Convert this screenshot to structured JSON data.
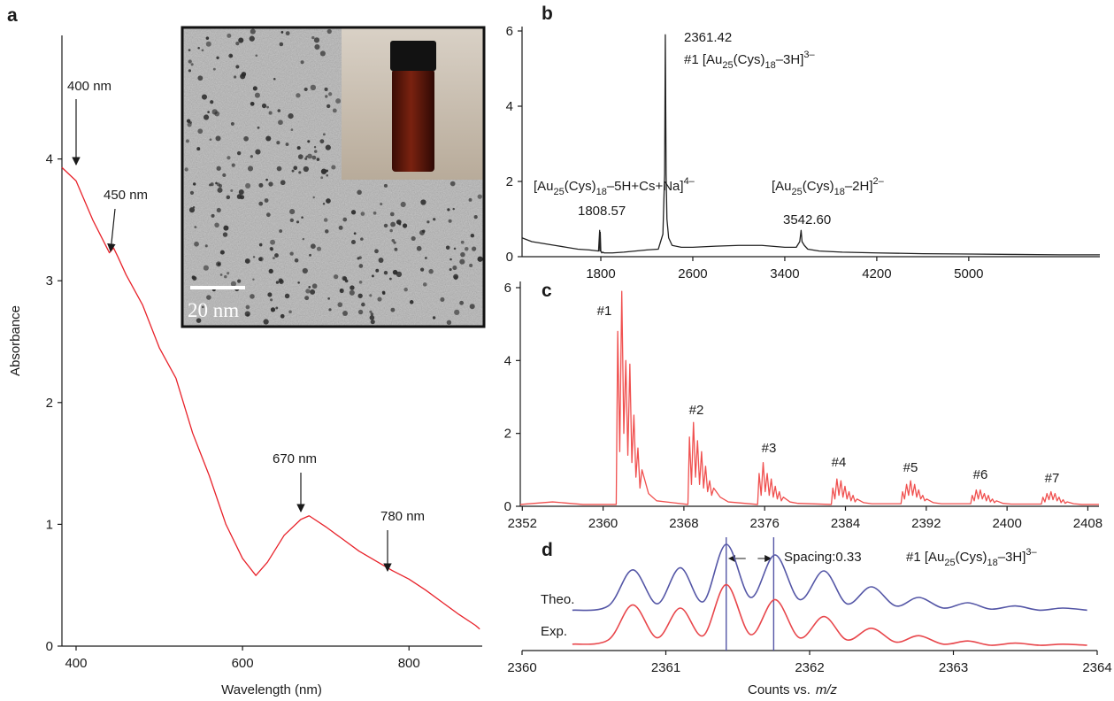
{
  "chart_data": [
    {
      "type": "line",
      "panel_label": "a",
      "x_label": "Wavelength (nm)",
      "y_label": "Absorbance",
      "x": [
        383,
        400,
        420,
        440,
        445,
        450,
        460,
        480,
        500,
        520,
        540,
        560,
        580,
        600,
        616,
        630,
        650,
        670,
        680,
        700,
        720,
        740,
        760,
        780,
        800,
        820,
        840,
        860,
        880,
        885
      ],
      "values": [
        3.93,
        3.82,
        3.5,
        3.23,
        3.27,
        3.2,
        3.05,
        2.8,
        2.45,
        2.2,
        1.75,
        1.4,
        1.0,
        0.72,
        0.58,
        0.69,
        0.91,
        1.04,
        1.07,
        0.98,
        0.88,
        0.78,
        0.7,
        0.62,
        0.55,
        0.46,
        0.36,
        0.26,
        0.17,
        0.14
      ],
      "color": "#e8222a",
      "xlim": [
        383,
        888
      ],
      "ylim": [
        0,
        5
      ],
      "xticks": [
        400,
        600,
        800
      ],
      "yticks": [
        0,
        1,
        2,
        3,
        4
      ],
      "annotations": [
        {
          "text": "400 nm"
        },
        {
          "text": "450 nm"
        },
        {
          "text": "670 nm"
        },
        {
          "text": "780 nm"
        }
      ],
      "inset": {
        "scale_label": "20 nm"
      }
    },
    {
      "type": "line",
      "panel_label": "b",
      "x": [
        1115,
        1200,
        1300,
        1400,
        1500,
        1600,
        1700,
        1780,
        1790,
        1792,
        1795,
        1800,
        1808,
        1815,
        1830,
        1900,
        2000,
        2100,
        2200,
        2300,
        2340,
        2355,
        2361,
        2368,
        2375,
        2390,
        2420,
        2500,
        2600,
        2800,
        3000,
        3200,
        3400,
        3500,
        3530,
        3542,
        3550,
        3570,
        3600,
        3700,
        3900,
        4200,
        4600,
        5000,
        5400,
        5800,
        6140
      ],
      "values": [
        0.5,
        0.4,
        0.35,
        0.3,
        0.25,
        0.2,
        0.18,
        0.15,
        0.7,
        0.15,
        0.65,
        0.15,
        0.1,
        0.12,
        0.1,
        0.1,
        0.12,
        0.15,
        0.18,
        0.2,
        0.6,
        2.2,
        5.9,
        2.2,
        1.0,
        0.5,
        0.3,
        0.25,
        0.25,
        0.28,
        0.3,
        0.3,
        0.25,
        0.25,
        0.4,
        0.7,
        0.4,
        0.3,
        0.2,
        0.15,
        0.12,
        0.1,
        0.08,
        0.07,
        0.06,
        0.05,
        0.05
      ],
      "color": "#222222",
      "xlim": [
        1115,
        6140
      ],
      "ylim": [
        0,
        6
      ],
      "xticks": [
        1800,
        2600,
        3400,
        4200,
        5000
      ],
      "yticks": [
        0,
        2,
        4,
        6
      ],
      "annotations": [
        {
          "text": "2361.42"
        },
        {
          "segments": [
            {
              "text": "#1 [Au"
            },
            {
              "text": "25",
              "script": "sub"
            },
            {
              "text": "(Cys)"
            },
            {
              "text": "18",
              "script": "sub"
            },
            {
              "text": "–3H]"
            },
            {
              "text": "3–",
              "script": "sup"
            }
          ]
        },
        {
          "segments": [
            {
              "text": "[Au"
            },
            {
              "text": "25",
              "script": "sub"
            },
            {
              "text": "(Cys)"
            },
            {
              "text": "18",
              "script": "sub"
            },
            {
              "text": "–5H+Cs+Na]"
            },
            {
              "text": "4–",
              "script": "sup"
            }
          ]
        },
        {
          "text": "1808.57"
        },
        {
          "segments": [
            {
              "text": "[Au"
            },
            {
              "text": "25",
              "script": "sub"
            },
            {
              "text": "(Cys)"
            },
            {
              "text": "18",
              "script": "sub"
            },
            {
              "text": "–2H]"
            },
            {
              "text": "2–",
              "script": "sup"
            }
          ]
        },
        {
          "text": "3542.60"
        }
      ]
    },
    {
      "type": "line",
      "panel_label": "c",
      "x": [
        2351.8,
        2355,
        2358,
        2361.3,
        2361.45,
        2361.65,
        2361.85,
        2362.05,
        2362.25,
        2362.45,
        2362.65,
        2362.85,
        2363.05,
        2363.25,
        2363.45,
        2363.65,
        2363.85,
        2364.5,
        2365.3,
        2368.4,
        2368.55,
        2368.75,
        2368.95,
        2369.15,
        2369.35,
        2369.55,
        2369.75,
        2369.95,
        2370.15,
        2370.35,
        2370.55,
        2370.75,
        2370.95,
        2371.6,
        2372.4,
        2375.3,
        2375.45,
        2375.65,
        2375.85,
        2376.05,
        2376.25,
        2376.45,
        2376.65,
        2376.85,
        2377.05,
        2377.25,
        2377.45,
        2377.65,
        2377.85,
        2378.5,
        2379.3,
        2382.6,
        2382.75,
        2382.95,
        2383.15,
        2383.35,
        2383.55,
        2383.75,
        2383.95,
        2384.15,
        2384.35,
        2384.55,
        2384.75,
        2384.95,
        2385.15,
        2385.8,
        2386.6,
        2389.5,
        2389.65,
        2389.85,
        2390.05,
        2390.25,
        2390.45,
        2390.65,
        2390.85,
        2391.05,
        2391.25,
        2391.45,
        2391.65,
        2391.85,
        2392.05,
        2392.7,
        2393.5,
        2396.4,
        2396.55,
        2396.75,
        2396.95,
        2397.15,
        2397.35,
        2397.55,
        2397.75,
        2397.95,
        2398.15,
        2398.35,
        2398.55,
        2398.75,
        2398.95,
        2399.6,
        2400.4,
        2403.4,
        2403.55,
        2403.75,
        2403.95,
        2404.15,
        2404.35,
        2404.55,
        2404.75,
        2404.95,
        2405.15,
        2405.35,
        2405.55,
        2405.75,
        2405.95,
        2406.6,
        2407.4,
        2409.1
      ],
      "values": [
        0.05,
        0.12,
        0.05,
        0.05,
        4.8,
        1.5,
        5.9,
        2.0,
        4.0,
        1.4,
        3.9,
        1.2,
        2.5,
        0.8,
        1.6,
        0.5,
        1.0,
        0.35,
        0.15,
        0.05,
        1.9,
        0.6,
        2.3,
        0.8,
        1.8,
        0.6,
        1.5,
        0.5,
        1.1,
        0.4,
        0.7,
        0.3,
        0.5,
        0.25,
        0.12,
        0.05,
        0.9,
        0.3,
        1.2,
        0.4,
        0.9,
        0.3,
        0.75,
        0.25,
        0.55,
        0.2,
        0.4,
        0.15,
        0.25,
        0.12,
        0.08,
        0.05,
        0.5,
        0.2,
        0.75,
        0.3,
        0.7,
        0.25,
        0.55,
        0.2,
        0.4,
        0.15,
        0.3,
        0.12,
        0.2,
        0.1,
        0.07,
        0.07,
        0.4,
        0.2,
        0.6,
        0.3,
        0.7,
        0.3,
        0.6,
        0.25,
        0.45,
        0.2,
        0.3,
        0.15,
        0.2,
        0.1,
        0.07,
        0.07,
        0.3,
        0.15,
        0.45,
        0.2,
        0.45,
        0.2,
        0.35,
        0.15,
        0.3,
        0.12,
        0.2,
        0.1,
        0.15,
        0.08,
        0.06,
        0.06,
        0.25,
        0.12,
        0.35,
        0.18,
        0.4,
        0.18,
        0.35,
        0.15,
        0.25,
        0.1,
        0.18,
        0.08,
        0.12,
        0.07,
        0.05,
        0.05
      ],
      "color": "#f0504f",
      "xlim": [
        2351.8,
        2409.1
      ],
      "ylim": [
        0,
        6
      ],
      "xticks": [
        2352,
        2360,
        2368,
        2376,
        2384,
        2392,
        2400,
        2408
      ],
      "yticks": [
        0,
        2,
        4,
        6
      ],
      "annotations": [
        {
          "text": "#1"
        },
        {
          "text": "#2"
        },
        {
          "text": "#3"
        },
        {
          "text": "#4"
        },
        {
          "text": "#5"
        },
        {
          "text": "#6"
        },
        {
          "text": "#7"
        }
      ]
    },
    {
      "type": "line",
      "panel_label": "d",
      "x_label": {
        "segments": [
          {
            "text": "Counts vs."
          },
          {
            "text": "m/z",
            "style": "italic"
          }
        ]
      },
      "x": [
        2360.35,
        2360.6,
        2360.77,
        2360.94,
        2361.1,
        2361.26,
        2361.42,
        2361.59,
        2361.76,
        2361.93,
        2362.1,
        2362.26,
        2362.43,
        2362.6,
        2362.76,
        2362.93,
        2363.1,
        2363.26,
        2363.43,
        2363.6,
        2363.76,
        2363.93
      ],
      "series": [
        {
          "name": "Theo.",
          "color": "#5456a6",
          "values": [
            0.38,
            0.42,
            0.76,
            0.44,
            0.78,
            0.46,
            1.0,
            0.5,
            0.9,
            0.48,
            0.75,
            0.44,
            0.6,
            0.42,
            0.5,
            0.4,
            0.45,
            0.39,
            0.42,
            0.38,
            0.4,
            0.38
          ]
        },
        {
          "name": "Exp.",
          "color": "#e8474c",
          "values": [
            0.06,
            0.1,
            0.43,
            0.12,
            0.4,
            0.14,
            0.62,
            0.15,
            0.48,
            0.12,
            0.32,
            0.1,
            0.21,
            0.08,
            0.14,
            0.06,
            0.09,
            0.05,
            0.07,
            0.05,
            0.06,
            0.05
          ]
        }
      ],
      "xlim": [
        2360,
        2364
      ],
      "ylim": [
        0,
        1
      ],
      "xticks": [
        2360,
        2361,
        2362,
        2363,
        2364
      ],
      "markers": [
        2361.42,
        2361.75
      ],
      "marker_color": "#5456a6",
      "annotations": [
        {
          "text": "Spacing:0.33"
        },
        {
          "segments": [
            {
              "text": "#1 [Au"
            },
            {
              "text": "25",
              "script": "sub"
            },
            {
              "text": "(Cys)"
            },
            {
              "text": "18",
              "script": "sub"
            },
            {
              "text": "–3H]"
            },
            {
              "text": "3–",
              "script": "sup"
            }
          ]
        }
      ]
    }
  ]
}
